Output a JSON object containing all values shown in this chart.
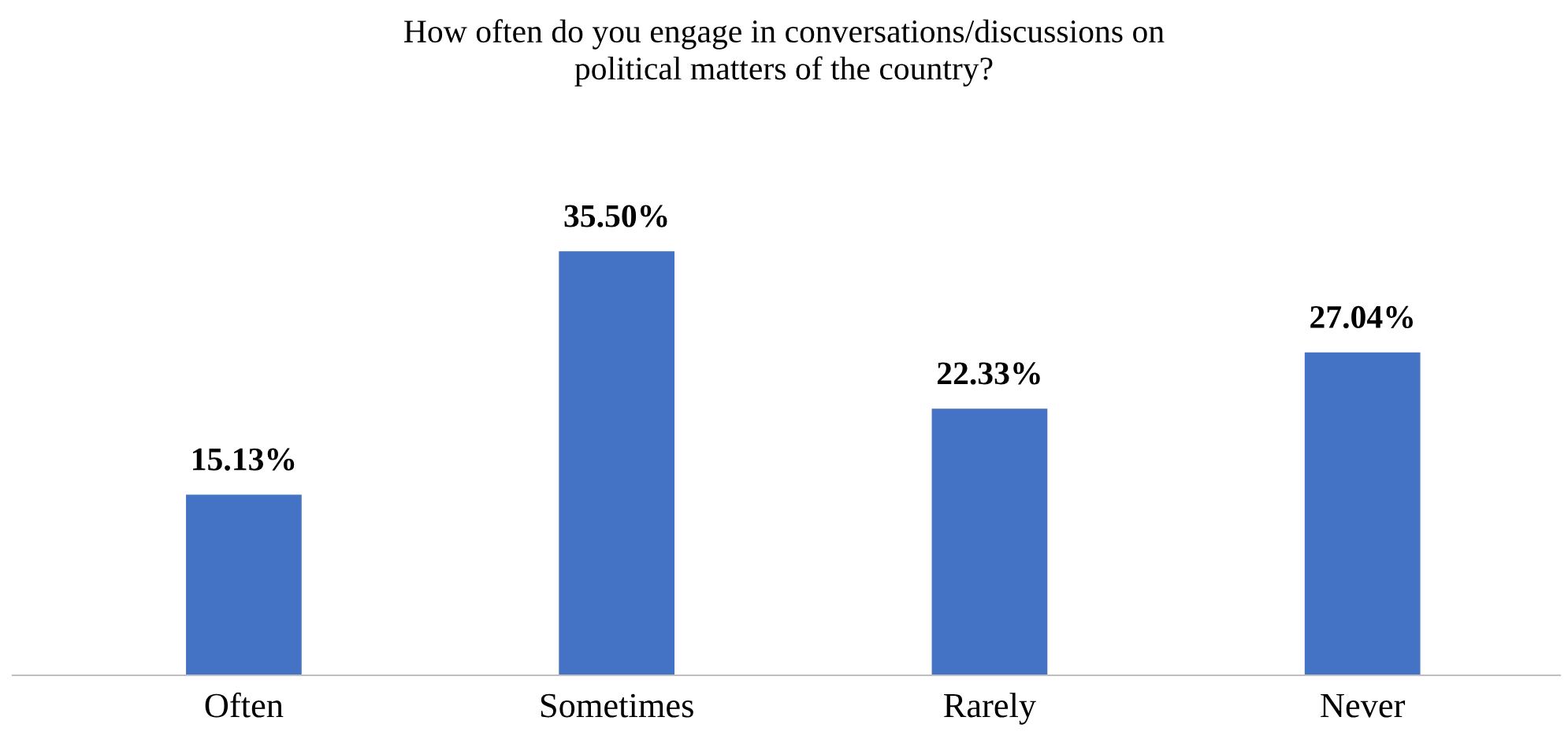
{
  "chart_data": {
    "type": "bar",
    "title": "How often do you engage in conversations/discussions on\npolitical matters of the country?",
    "categories": [
      "Often",
      "Sometimes",
      "Rarely",
      "Never"
    ],
    "values": [
      15.13,
      35.5,
      22.33,
      27.04
    ],
    "value_labels": [
      "15.13%",
      "35.50%",
      "22.33%",
      "27.04%"
    ],
    "color": "#4472c4",
    "grid": false,
    "legend": false
  }
}
